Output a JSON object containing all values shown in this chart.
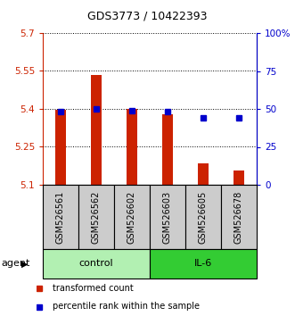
{
  "title": "GDS3773 / 10422393",
  "samples": [
    "GSM526561",
    "GSM526562",
    "GSM526602",
    "GSM526603",
    "GSM526605",
    "GSM526678"
  ],
  "red_values": [
    5.395,
    5.535,
    5.4,
    5.38,
    5.185,
    5.155
  ],
  "blue_values": [
    48,
    50,
    49,
    48,
    44,
    44
  ],
  "ylim_left": [
    5.1,
    5.7
  ],
  "ylim_right": [
    0,
    100
  ],
  "yticks_left": [
    5.1,
    5.25,
    5.4,
    5.55,
    5.7
  ],
  "ytick_labels_left": [
    "5.1",
    "5.25",
    "5.4",
    "5.55",
    "5.7"
  ],
  "yticks_right": [
    0,
    25,
    50,
    75,
    100
  ],
  "ytick_labels_right": [
    "0",
    "25",
    "50",
    "75",
    "100%"
  ],
  "groups": [
    {
      "label": "control",
      "samples": [
        0,
        1,
        2
      ],
      "color": "#b2f0b2"
    },
    {
      "label": "IL-6",
      "samples": [
        3,
        4,
        5
      ],
      "color": "#33cc33"
    }
  ],
  "bar_color": "#cc2200",
  "dot_color": "#0000cc",
  "bar_base": 5.1,
  "agent_label": "agent",
  "legend_items": [
    {
      "color": "#cc2200",
      "label": "transformed count"
    },
    {
      "color": "#0000cc",
      "label": "percentile rank within the sample"
    }
  ],
  "background_plot": "#ffffff",
  "background_sample_row": "#cccccc",
  "title_fontsize": 9,
  "tick_fontsize": 7.5,
  "label_fontsize": 7,
  "bar_width": 0.32
}
